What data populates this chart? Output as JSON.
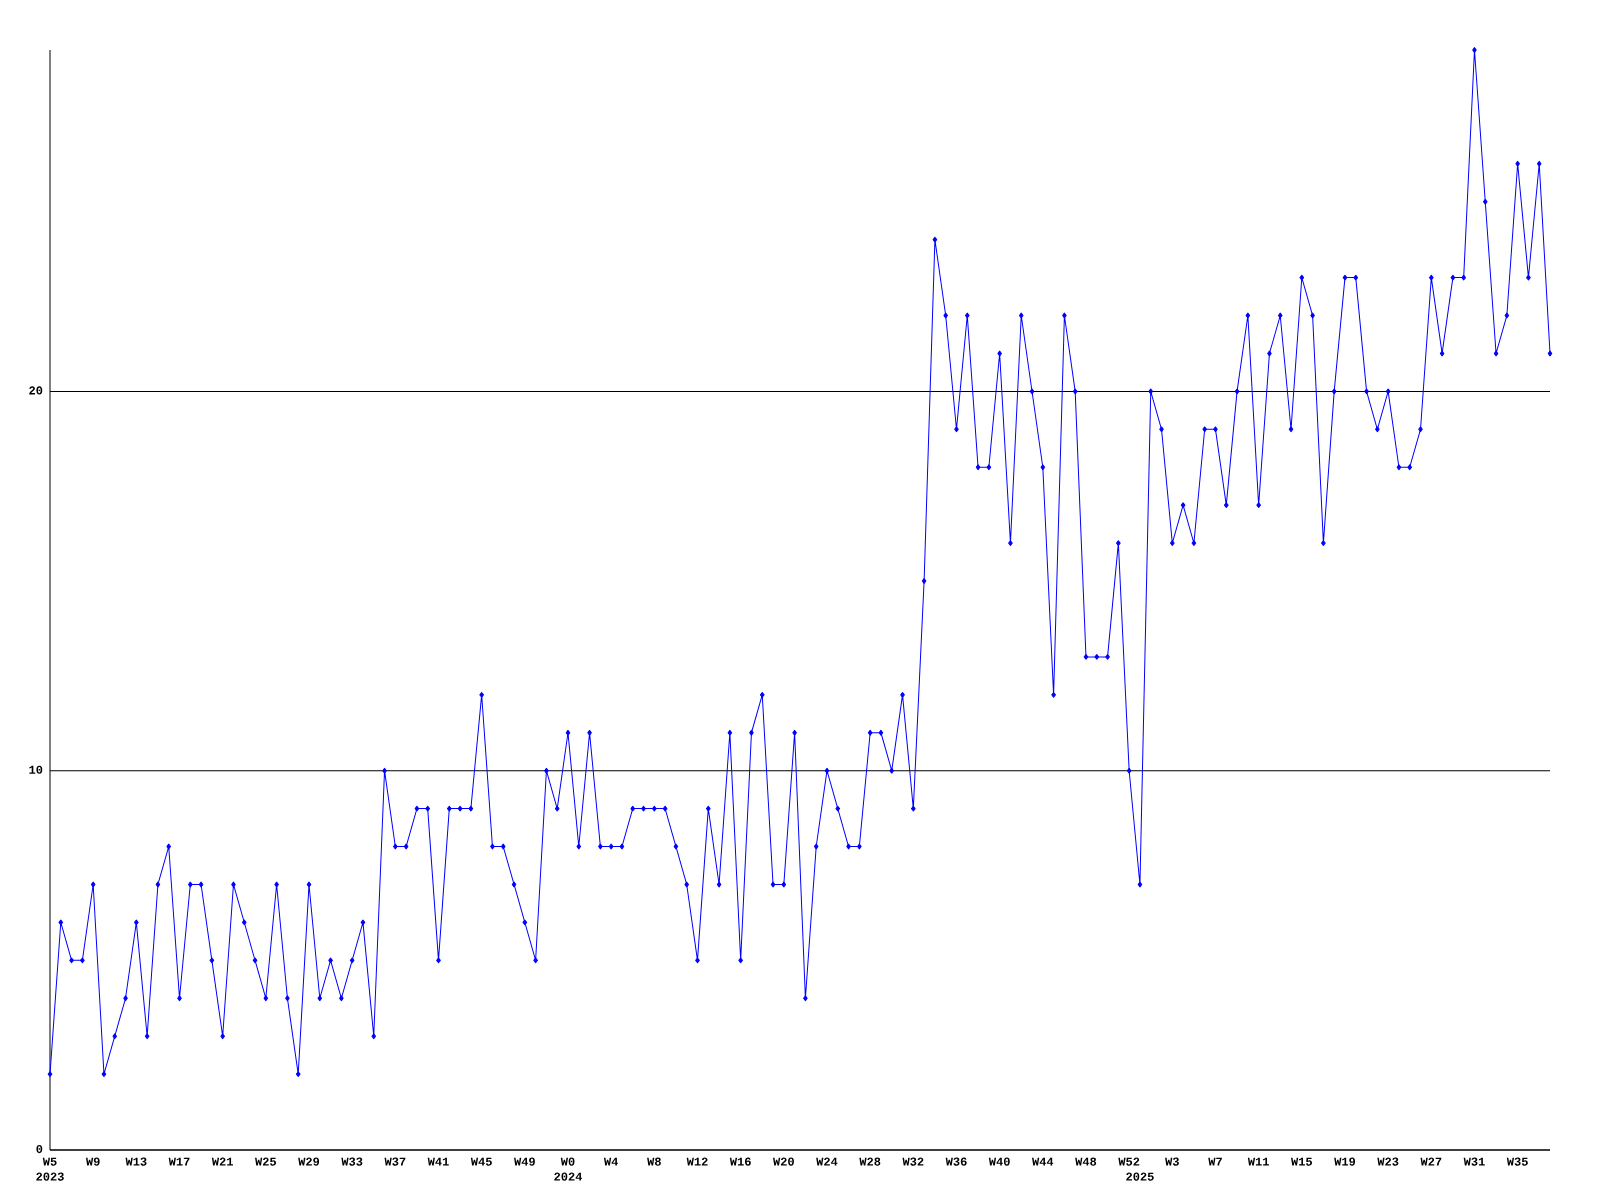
{
  "chart_data": {
    "type": "line",
    "color": "#0000ff",
    "marker": "diamond",
    "line_style": "solid",
    "grid": "y",
    "categories": [
      "W5\n2023",
      null,
      null,
      null,
      "W9",
      null,
      null,
      null,
      "W13",
      null,
      null,
      null,
      "W17",
      null,
      null,
      null,
      "W21",
      null,
      null,
      null,
      "W25",
      null,
      null,
      null,
      "W29",
      null,
      null,
      null,
      "W33",
      null,
      null,
      null,
      "W37",
      null,
      null,
      null,
      "W41",
      null,
      null,
      null,
      "W45",
      null,
      null,
      null,
      "W49",
      null,
      null,
      null,
      "W0\n2024",
      null,
      null,
      null,
      "W4",
      null,
      null,
      null,
      "W8",
      null,
      null,
      null,
      "W12",
      null,
      null,
      null,
      "W16",
      null,
      null,
      null,
      "W20",
      null,
      null,
      null,
      "W24",
      null,
      null,
      null,
      "W28",
      null,
      null,
      null,
      "W32",
      null,
      null,
      null,
      "W36",
      null,
      null,
      null,
      "W40",
      null,
      null,
      null,
      "W44",
      null,
      null,
      null,
      "W48",
      null,
      null,
      null,
      "W52",
      "\n2025",
      null,
      null,
      "W3",
      null,
      null,
      null,
      "W7",
      null,
      null,
      null,
      "W11",
      null,
      null,
      null,
      "W15",
      null,
      null,
      null,
      "W19",
      null,
      null,
      null,
      "W23",
      null,
      null,
      null,
      "W27",
      null,
      null,
      null,
      "W31",
      null,
      null,
      null,
      "W35",
      null,
      null,
      null
    ],
    "values": [
      2,
      6,
      5,
      5,
      7,
      2,
      3,
      4,
      6,
      3,
      7,
      8,
      4,
      7,
      7,
      5,
      3,
      7,
      6,
      5,
      4,
      7,
      4,
      2,
      7,
      4,
      5,
      4,
      5,
      6,
      3,
      10,
      8,
      8,
      9,
      9,
      5,
      9,
      9,
      9,
      12,
      8,
      8,
      7,
      6,
      5,
      10,
      9,
      11,
      8,
      11,
      8,
      8,
      8,
      9,
      9,
      9,
      9,
      8,
      7,
      5,
      9,
      7,
      11,
      5,
      11,
      12,
      7,
      7,
      11,
      4,
      8,
      10,
      9,
      8,
      8,
      11,
      11,
      10,
      12,
      9,
      15,
      24,
      22,
      19,
      22,
      18,
      18,
      21,
      16,
      22,
      20,
      18,
      12,
      22,
      20,
      13,
      13,
      13,
      16,
      10,
      7,
      20,
      19,
      16,
      17,
      16,
      19,
      19,
      17,
      20,
      22,
      17,
      21,
      22,
      19,
      23,
      22,
      16,
      20,
      23,
      23,
      20,
      19,
      20,
      18,
      18,
      19,
      23,
      21,
      23,
      23,
      29,
      25,
      21,
      22,
      26,
      23,
      26,
      21
    ],
    "ylim": [
      0,
      29
    ],
    "yticks": [
      0,
      10,
      20
    ]
  }
}
